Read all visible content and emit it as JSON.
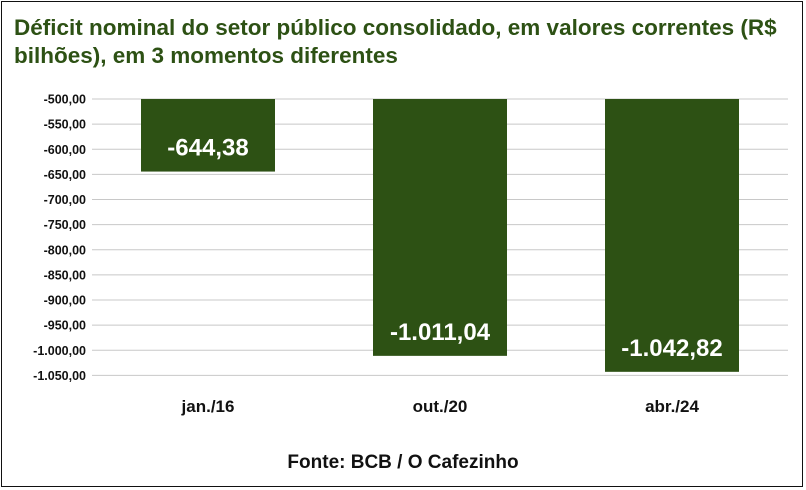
{
  "chart_data": {
    "type": "bar",
    "title": "Déficit nominal do setor público consolidado, em valores correntes (R$ bilhões), em 3 momentos diferentes",
    "xlabel": "",
    "ylabel": "",
    "categories": [
      "jan./16",
      "out./20",
      "abr./24"
    ],
    "values": [
      -644.38,
      -1011.04,
      -1042.82
    ],
    "data_labels": [
      "-644,38",
      "-1.011,04",
      "-1.042,82"
    ],
    "ylim": [
      -1075,
      -500
    ],
    "yticks": [
      -500,
      -550,
      -600,
      -650,
      -700,
      -750,
      -800,
      -850,
      -900,
      -950,
      -1000,
      -1050
    ],
    "ytick_labels": [
      "-500,00",
      "-550,00",
      "-600,00",
      "-650,00",
      "-700,00",
      "-750,00",
      "-800,00",
      "-850,00",
      "-900,00",
      "-950,00",
      "-1.000,00",
      "-1.050,00"
    ],
    "grid": true,
    "legend": "none",
    "bar_color": "#2d5114",
    "source": "Fonte: BCB / O Cafezinho"
  }
}
